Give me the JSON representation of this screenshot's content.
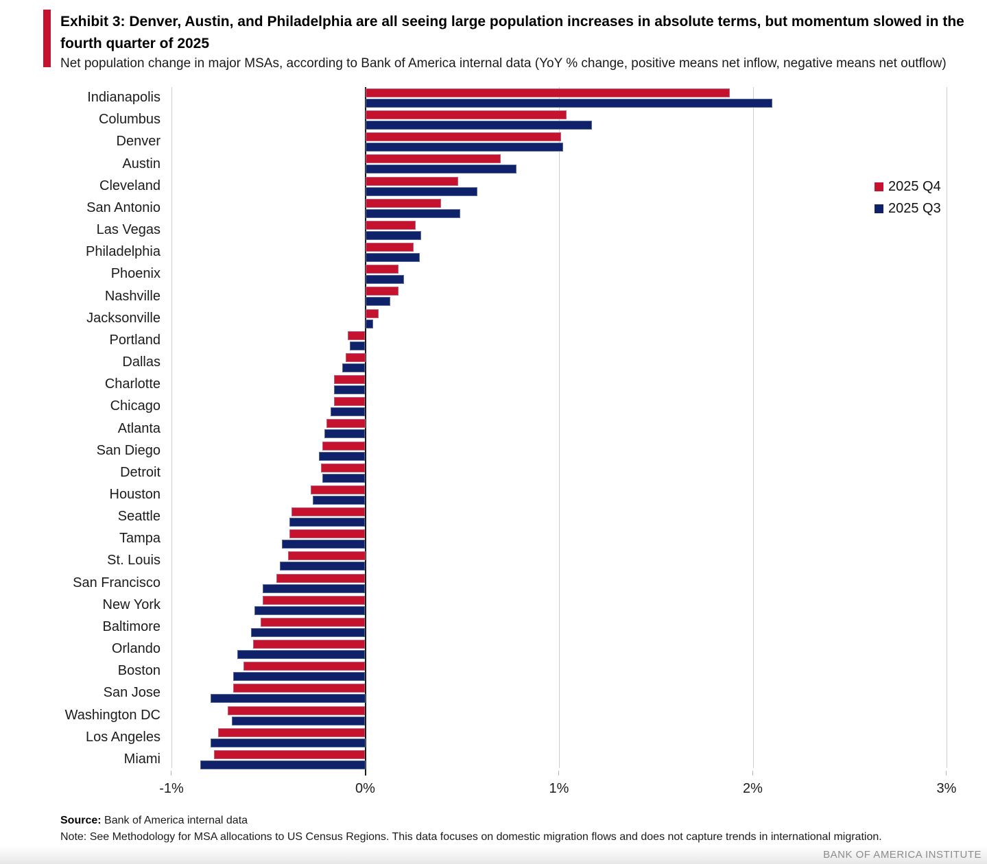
{
  "header": {
    "exhibit_title": "Exhibit 3: Denver, Austin, and Philadelphia are all seeing large population increases in absolute terms, but momentum slowed in the fourth quarter of 2025",
    "subtitle": "Net population change in major MSAs, according to Bank of America internal data (YoY % change, positive means net inflow, negative means net outflow)"
  },
  "colors": {
    "accent_red": "#C4122F",
    "q4_red": "#C4122F",
    "q3_navy": "#0E2169",
    "gridline": "#cccccc",
    "zero_axis": "#1a1a1a",
    "brand_gray": "#8c8c8c"
  },
  "chart_data": {
    "type": "bar",
    "orientation": "horizontal",
    "title": "Net population change in major MSAs (YoY % change)",
    "xlabel": "",
    "ylabel": "",
    "xlim": [
      -1,
      3
    ],
    "x_ticks": [
      -1,
      0,
      1,
      2,
      3
    ],
    "x_tick_labels": [
      "-1%",
      "0%",
      "1%",
      "2%",
      "3%"
    ],
    "grid": "vertical",
    "legend_position": "top-right",
    "categories": [
      "Indianapolis",
      "Columbus",
      "Denver",
      "Austin",
      "Cleveland",
      "San Antonio",
      "Las Vegas",
      "Philadelphia",
      "Phoenix",
      "Nashville",
      "Jacksonville",
      "Portland",
      "Dallas",
      "Charlotte",
      "Chicago",
      "Atlanta",
      "San Diego",
      "Detroit",
      "Houston",
      "Seattle",
      "Tampa",
      "St. Louis",
      "San Francisco",
      "New York",
      "Baltimore",
      "Orlando",
      "Boston",
      "San Jose",
      "Washington DC",
      "Los Angeles",
      "Miami"
    ],
    "series": [
      {
        "name": "2025 Q4",
        "color": "#C4122F",
        "values": [
          1.88,
          1.04,
          1.01,
          0.7,
          0.48,
          0.39,
          0.26,
          0.25,
          0.17,
          0.17,
          0.07,
          -0.09,
          -0.1,
          -0.16,
          -0.16,
          -0.2,
          -0.22,
          -0.23,
          -0.28,
          -0.38,
          -0.39,
          -0.4,
          -0.46,
          -0.53,
          -0.54,
          -0.58,
          -0.63,
          -0.68,
          -0.71,
          -0.76,
          -0.78
        ]
      },
      {
        "name": "2025 Q3",
        "color": "#0E2169",
        "values": [
          2.1,
          1.17,
          1.02,
          0.78,
          0.58,
          0.49,
          0.29,
          0.28,
          0.2,
          0.13,
          0.04,
          -0.08,
          -0.12,
          -0.16,
          -0.18,
          -0.21,
          -0.24,
          -0.22,
          -0.27,
          -0.39,
          -0.43,
          -0.44,
          -0.53,
          -0.57,
          -0.59,
          -0.66,
          -0.68,
          -0.8,
          -0.69,
          -0.8,
          -0.85
        ]
      }
    ]
  },
  "footer": {
    "source_label": "Source:",
    "source_text": " Bank of America internal data",
    "note": "Note: See Methodology for MSA allocations to US Census Regions. This data focuses on domestic migration flows and does not capture trends in international migration.",
    "brand": "BANK OF AMERICA INSTITUTE"
  }
}
